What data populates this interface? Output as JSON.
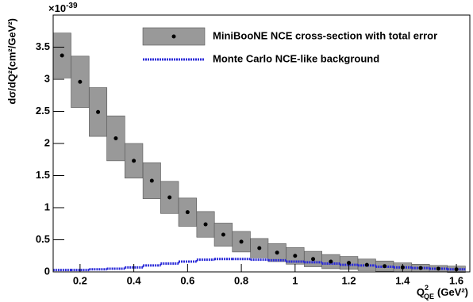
{
  "chart_data": {
    "type": "errorbox",
    "y_label": "dσ/dQ²(cm²/GeV²)",
    "y_multiplier": {
      "base": "×10",
      "exponent": "-39"
    },
    "x_label": {
      "main": "Q",
      "sup": "2",
      "sub": "QE",
      "unit": "(GeV²)"
    },
    "x": [
      0.133,
      0.2,
      0.267,
      0.333,
      0.4,
      0.467,
      0.533,
      0.6,
      0.667,
      0.733,
      0.8,
      0.867,
      0.933,
      1.0,
      1.067,
      1.133,
      1.2,
      1.267,
      1.333,
      1.4,
      1.467,
      1.533,
      1.6
    ],
    "series": [
      {
        "name": "MiniBooNE NCE cross-section with total error",
        "color": "#999999",
        "values": [
          3.37,
          2.96,
          2.49,
          2.08,
          1.73,
          1.42,
          1.16,
          0.93,
          0.74,
          0.58,
          0.47,
          0.37,
          0.3,
          0.25,
          0.2,
          0.16,
          0.14,
          0.11,
          0.09,
          0.07,
          0.06,
          0.05,
          0.04
        ],
        "errors": [
          0.35,
          0.4,
          0.38,
          0.35,
          0.27,
          0.28,
          0.25,
          0.22,
          0.2,
          0.18,
          0.16,
          0.15,
          0.14,
          0.13,
          0.12,
          0.11,
          0.1,
          0.09,
          0.08,
          0.07,
          0.06,
          0.05,
          0.05
        ]
      },
      {
        "name": "Monte Carlo NCE-like background",
        "color": "#2a2ad8",
        "values": [
          0.03,
          0.03,
          0.04,
          0.05,
          0.07,
          0.1,
          0.13,
          0.16,
          0.19,
          0.2,
          0.2,
          0.19,
          0.18,
          0.16,
          0.15,
          0.13,
          0.11,
          0.1,
          0.08,
          0.07,
          0.06,
          0.05,
          0.04
        ]
      }
    ],
    "xlim": [
      0.1,
      1.65
    ],
    "ylim": [
      0,
      4
    ],
    "xticks": [
      0.2,
      0.4,
      0.6,
      0.8,
      1,
      1.2,
      1.4,
      1.6
    ],
    "yticks": [
      0,
      0.5,
      1,
      1.5,
      2,
      2.5,
      3,
      3.5
    ]
  }
}
